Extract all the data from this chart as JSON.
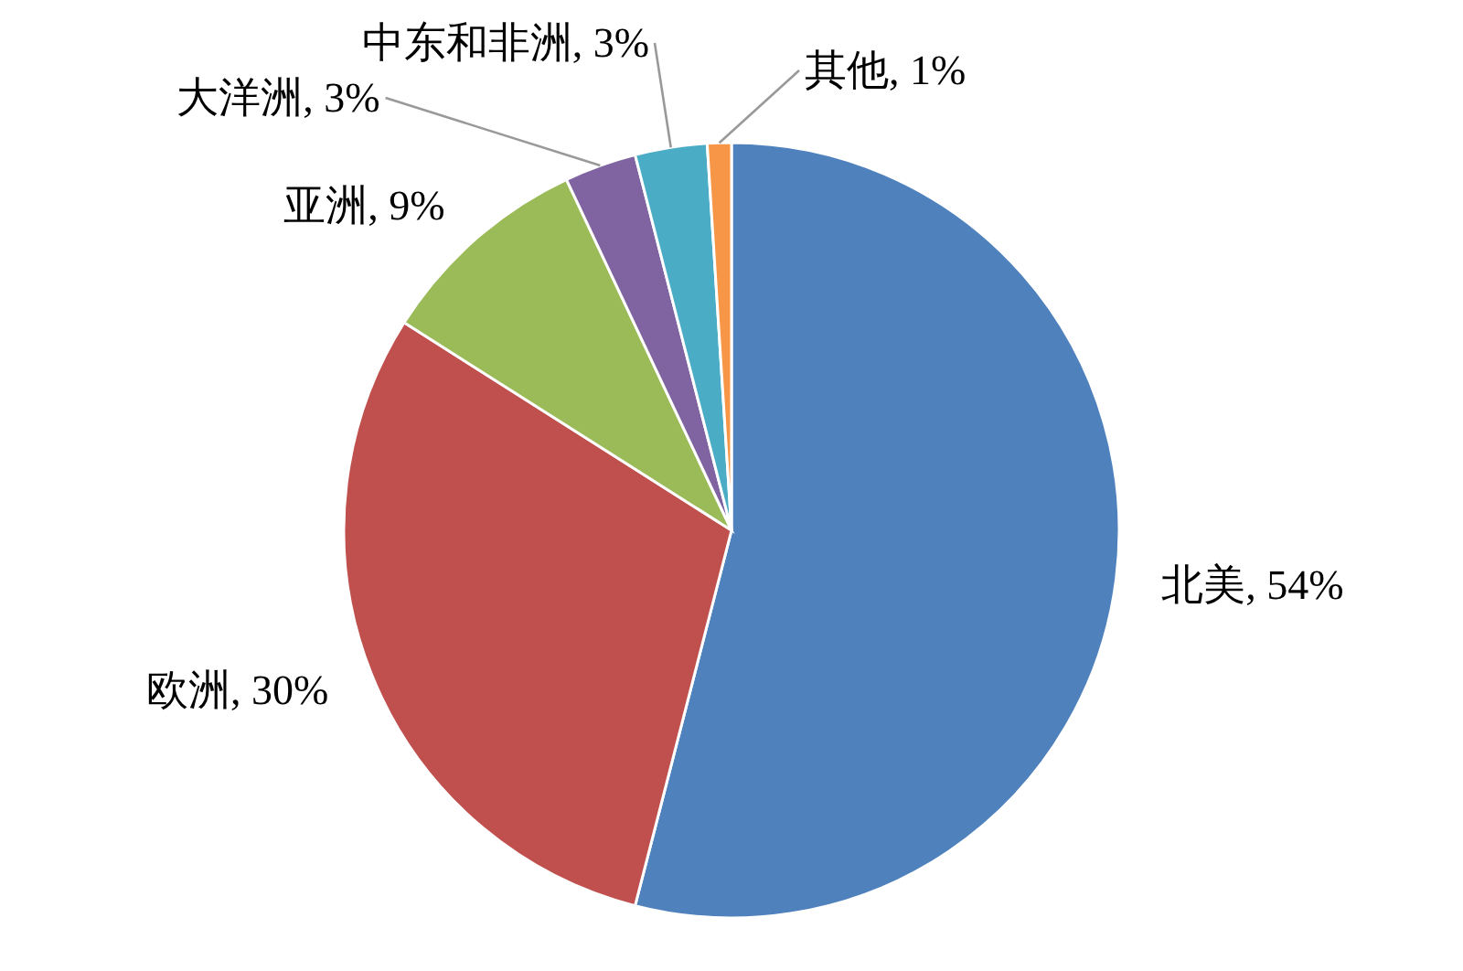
{
  "chart_data": {
    "type": "pie",
    "categories": [
      "北美",
      "欧洲",
      "亚洲",
      "大洋洲",
      "中东和非洲",
      "其他"
    ],
    "values": [
      54,
      30,
      9,
      3,
      3,
      1
    ],
    "value_labels": [
      "54%",
      "30%",
      "9%",
      "3%",
      "3%",
      "1%"
    ],
    "colors": [
      "#4f81bd",
      "#c0504d",
      "#9bbb59",
      "#8064a2",
      "#4bacc6",
      "#f79646"
    ]
  }
}
